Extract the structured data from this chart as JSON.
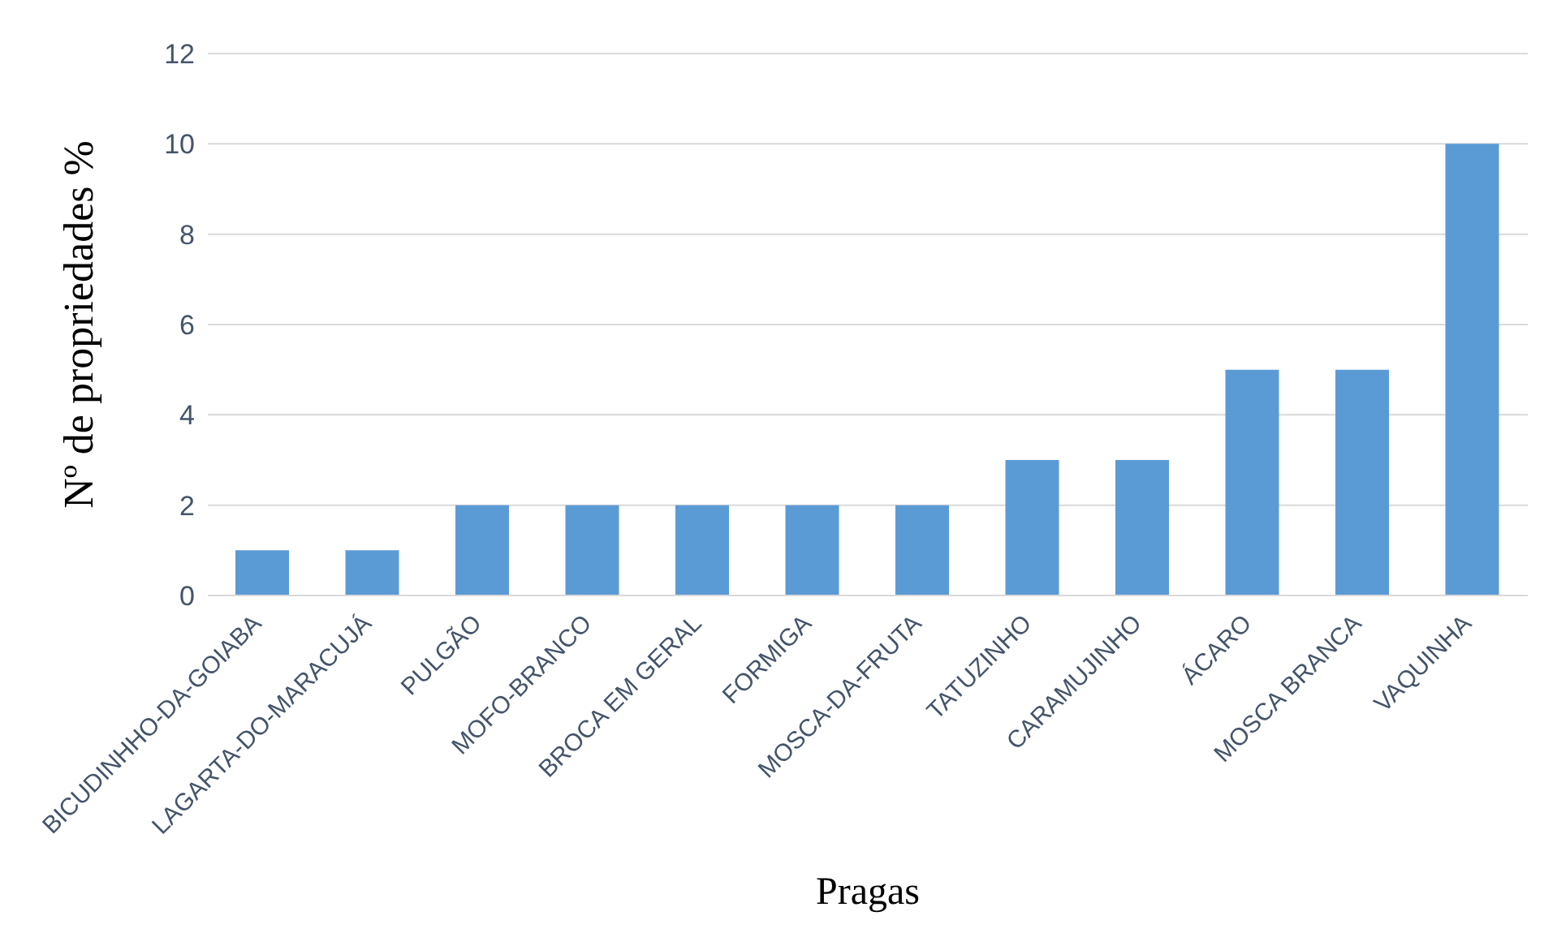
{
  "chart_data": {
    "type": "bar",
    "xlabel": "Pragas",
    "ylabel": "Nº de propriedades %",
    "categories": [
      "BICUDINHHO-DA-GOIABA",
      "LAGARTA-DO-MARACUJÁ",
      "PULGÃO",
      "MOFO-BRANCO",
      "BROCA EM GERAL",
      "FORMIGA",
      "MOSCA-DA-FRUTA",
      "TATUZINHO",
      "CARAMUJINHO",
      "ÁCARO",
      "MOSCA BRANCA",
      "VAQUINHA"
    ],
    "values": [
      1,
      1,
      2,
      2,
      2,
      2,
      2,
      3,
      3,
      5,
      5,
      10
    ],
    "color": "#5b9bd5",
    "ylim": [
      0,
      12
    ],
    "yticks": [
      0,
      2,
      4,
      6,
      8,
      10,
      12
    ],
    "grid": "y"
  }
}
